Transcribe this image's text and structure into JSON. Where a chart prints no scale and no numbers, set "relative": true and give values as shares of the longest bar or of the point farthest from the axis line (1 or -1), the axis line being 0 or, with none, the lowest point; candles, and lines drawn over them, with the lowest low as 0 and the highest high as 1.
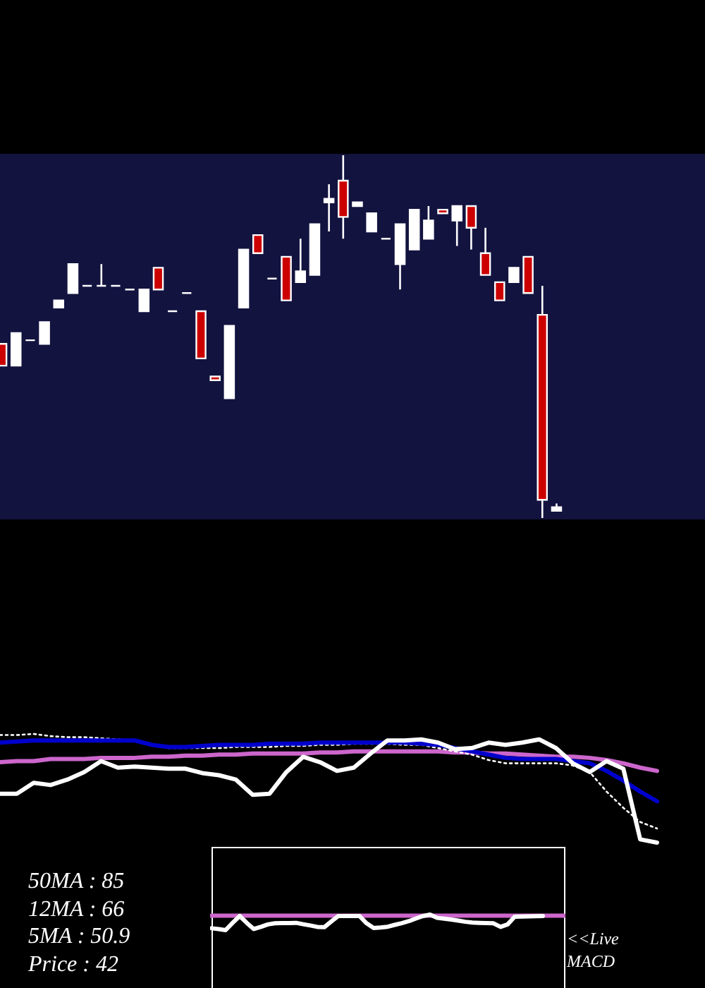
{
  "chart_data": [
    {
      "type": "candlestick",
      "relative": true,
      "categories": [
        null,
        null,
        null,
        null,
        null,
        null,
        null,
        null,
        null,
        null,
        null,
        null,
        null,
        null,
        null,
        null,
        null,
        null,
        null,
        null,
        null,
        null,
        null,
        null,
        null,
        null,
        null,
        null,
        null,
        null,
        null,
        null,
        null,
        null,
        null,
        null,
        null,
        null,
        null,
        null
      ],
      "ohlc": [
        [
          0.48,
          0.48,
          0.42,
          0.42
        ],
        [
          0.42,
          0.51,
          0.42,
          0.51
        ],
        [
          0.49,
          0.49,
          0.49,
          0.49
        ],
        [
          0.48,
          0.54,
          0.48,
          0.54
        ],
        [
          0.58,
          0.6,
          0.58,
          0.6
        ],
        [
          0.62,
          0.7,
          0.62,
          0.7
        ],
        [
          0.64,
          0.64,
          0.64,
          0.64
        ],
        [
          0.64,
          0.7,
          0.64,
          0.64
        ],
        [
          0.64,
          0.64,
          0.64,
          0.64
        ],
        [
          0.63,
          0.63,
          0.63,
          0.63
        ],
        [
          0.57,
          0.63,
          0.57,
          0.63
        ],
        [
          0.69,
          0.69,
          0.63,
          0.63
        ],
        [
          0.57,
          0.57,
          0.57,
          0.57
        ],
        [
          0.62,
          0.62,
          0.62,
          0.62
        ],
        [
          0.57,
          0.57,
          0.44,
          0.44
        ],
        [
          0.39,
          0.39,
          0.38,
          0.38
        ],
        [
          0.33,
          0.53,
          0.33,
          0.53
        ],
        [
          0.58,
          0.74,
          0.58,
          0.74
        ],
        [
          0.78,
          0.78,
          0.73,
          0.73
        ],
        [
          0.66,
          0.66,
          0.66,
          0.66
        ],
        [
          0.72,
          0.72,
          0.6,
          0.6
        ],
        [
          0.65,
          0.77,
          0.65,
          0.68
        ],
        [
          0.67,
          0.81,
          0.67,
          0.81
        ],
        [
          0.87,
          0.92,
          0.79,
          0.88
        ],
        [
          0.93,
          1.0,
          0.77,
          0.83
        ],
        [
          0.86,
          0.87,
          0.86,
          0.87
        ],
        [
          0.79,
          0.84,
          0.79,
          0.84
        ],
        [
          0.77,
          0.77,
          0.77,
          0.77
        ],
        [
          0.7,
          0.81,
          0.63,
          0.81
        ],
        [
          0.74,
          0.85,
          0.74,
          0.85
        ],
        [
          0.77,
          0.86,
          0.77,
          0.82
        ],
        [
          0.85,
          0.85,
          0.84,
          0.84
        ],
        [
          0.82,
          0.86,
          0.75,
          0.86
        ],
        [
          0.86,
          0.86,
          0.74,
          0.8
        ],
        [
          0.73,
          0.8,
          0.67,
          0.67
        ],
        [
          0.65,
          0.65,
          0.6,
          0.6
        ],
        [
          0.65,
          0.69,
          0.65,
          0.69
        ],
        [
          0.72,
          0.72,
          0.62,
          0.62
        ],
        [
          0.56,
          0.64,
          0,
          0.05
        ],
        [
          0.02,
          0.04,
          0.02,
          0.03
        ]
      ],
      "colors": [
        "#cc0000",
        "#ffffff",
        "#ffffff",
        "#ffffff",
        "#ffffff",
        "#ffffff",
        "#ffffff",
        "#ffffff",
        "#ffffff",
        "#ffffff",
        "#ffffff",
        "#cc0000",
        "#ffffff",
        "#ffffff",
        "#cc0000",
        "#cc0000",
        "#ffffff",
        "#ffffff",
        "#cc0000",
        "#ffffff",
        "#cc0000",
        "#ffffff",
        "#ffffff",
        "#ffffff",
        "#cc0000",
        "#ffffff",
        "#ffffff",
        "#ffffff",
        "#ffffff",
        "#ffffff",
        "#ffffff",
        "#cc0000",
        "#ffffff",
        "#cc0000",
        "#cc0000",
        "#cc0000",
        "#ffffff",
        "#cc0000",
        "#cc0000",
        "#ffffff"
      ]
    },
    {
      "type": "line",
      "relative": true,
      "categories": [
        null,
        null,
        null,
        null,
        null,
        null,
        null,
        null,
        null,
        null,
        null,
        null,
        null,
        null,
        null,
        null,
        null,
        null,
        null,
        null,
        null,
        null,
        null,
        null,
        null,
        null,
        null,
        null,
        null,
        null,
        null,
        null,
        null,
        null,
        null,
        null,
        null,
        null,
        null,
        null
      ],
      "series": [
        {
          "color": "#cc66cc",
          "values": [
            0.74,
            0.75,
            0.75,
            0.77,
            0.77,
            0.77,
            0.78,
            0.78,
            0.78,
            0.79,
            0.79,
            0.8,
            0.8,
            0.81,
            0.81,
            0.82,
            0.82,
            0.82,
            0.82,
            0.83,
            0.83,
            0.84,
            0.84,
            0.84,
            0.84,
            0.84,
            0.84,
            0.83,
            0.83,
            0.82,
            0.82,
            0.81,
            0.8,
            0.79,
            0.79,
            0.78,
            0.76,
            0.73,
            0.69,
            0.66
          ]
        },
        {
          "color": "#ffffff",
          "line_style": "dotted",
          "values": [
            0.99,
            0.99,
            1.0,
            0.98,
            0.97,
            0.97,
            0.96,
            0.95,
            0.94,
            0.9,
            0.87,
            0.87,
            0.87,
            0.87,
            0.88,
            0.88,
            0.88,
            0.89,
            0.89,
            0.9,
            0.9,
            0.91,
            0.91,
            0.91,
            0.9,
            0.9,
            0.87,
            0.84,
            0.81,
            0.76,
            0.73,
            0.73,
            0.73,
            0.73,
            0.71,
            0.65,
            0.47,
            0.32,
            0.19,
            0.13
          ]
        },
        {
          "color": "#0000cc",
          "values": [
            0.92,
            0.93,
            0.94,
            0.94,
            0.94,
            0.94,
            0.94,
            0.94,
            0.94,
            0.9,
            0.88,
            0.88,
            0.89,
            0.9,
            0.9,
            0.9,
            0.91,
            0.91,
            0.91,
            0.92,
            0.92,
            0.92,
            0.92,
            0.92,
            0.92,
            0.91,
            0.9,
            0.87,
            0.84,
            0.81,
            0.78,
            0.77,
            0.77,
            0.77,
            0.75,
            0.73,
            0.66,
            0.57,
            0.47,
            0.38
          ]
        },
        {
          "color": "#ffffff",
          "values": [
            0.45,
            0.45,
            0.55,
            0.53,
            0.58,
            0.65,
            0.75,
            0.69,
            0.7,
            0.69,
            0.68,
            0.68,
            0.64,
            0.62,
            0.58,
            0.44,
            0.45,
            0.65,
            0.79,
            0.74,
            0.66,
            0.69,
            0.82,
            0.94,
            0.94,
            0.95,
            0.92,
            0.86,
            0.87,
            0.92,
            0.9,
            0.92,
            0.95,
            0.87,
            0.73,
            0.65,
            0.75,
            0.68,
            0.03,
            0
          ]
        }
      ],
      "annotations": [
        "50MA : 85",
        "12MA : 66",
        "5MA : 50.9",
        "Price : 42"
      ]
    },
    {
      "type": "line",
      "relative": true,
      "categories": [
        null,
        null,
        null,
        null,
        null,
        null,
        null,
        null,
        null,
        null,
        null,
        null,
        null,
        null,
        null,
        null,
        null,
        null,
        null,
        null,
        null,
        null,
        null,
        null,
        null,
        null,
        null,
        null,
        null,
        null,
        null,
        null,
        null,
        null,
        null,
        null,
        null,
        null,
        null,
        null,
        null,
        null,
        null,
        null,
        null,
        null,
        null,
        null,
        null,
        null,
        null
      ],
      "series": [
        {
          "color": "#cc66cc",
          "values": [
            0.93,
            0.93,
            0.93,
            0.93,
            0.93,
            0.93,
            0.93,
            0.93,
            0.93,
            0.93,
            0.93,
            0.93,
            0.93,
            0.93,
            0.93,
            0.93,
            0.93,
            0.93,
            0.93,
            0.93,
            0.93,
            0.93,
            0.93,
            0.93,
            0.93,
            0.93,
            0.93,
            0.93,
            0.93,
            0.93,
            0.93,
            0.93,
            0.93,
            0.93,
            0.93,
            0.93,
            0.93,
            0.93,
            0.93,
            0.93,
            0.93,
            0.93,
            0.93,
            0.93,
            0.93,
            0.93,
            0.93,
            0.93,
            0.93,
            0.93,
            0.93
          ]
        },
        {
          "color": "#ffffff",
          "values": [
            0.12,
            0.07,
            0,
            0.47,
            0.91,
            0.47,
            0.07,
            0.21,
            0.37,
            0.44,
            0.45,
            0.46,
            0.47,
            0.38,
            0.3,
            0.21,
            0.19,
            0.56,
            0.91,
            0.91,
            0.91,
            0.91,
            0.44,
            0.14,
            0.17,
            0.22,
            0.34,
            0.45,
            0.58,
            0.75,
            0.91,
            1.0,
            0.79,
            0.74,
            0.68,
            0.61,
            0.54,
            0.49,
            0.47,
            0.46,
            0.44,
            0.21,
            0.37,
            0.86,
            0.88,
            0.89,
            0.9,
            0.91,
            null,
            null,
            null
          ]
        }
      ],
      "annotations": [
        "<<Live MACD"
      ]
    }
  ]
}
